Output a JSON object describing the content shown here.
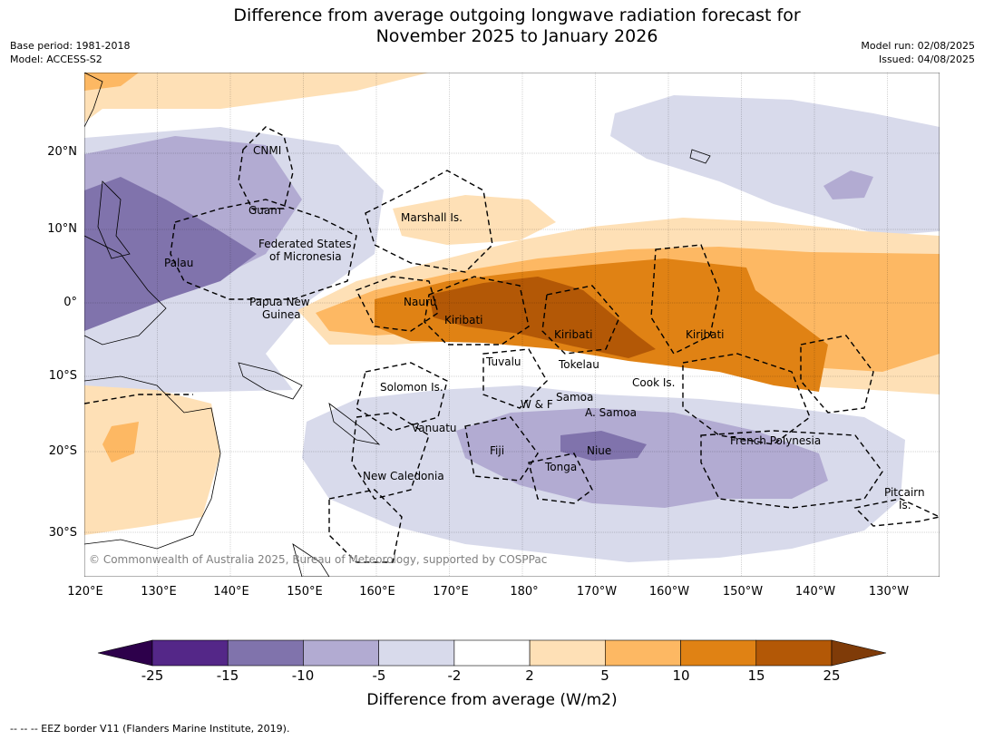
{
  "title_line1": "Difference from average outgoing longwave radiation forecast for",
  "title_line2": "November 2025 to January 2026",
  "base_period": "Base period: 1981-2018",
  "model": "Model: ACCESS-S2",
  "model_run": "Model run: 02/08/2025",
  "issued": "Issued: 04/08/2025",
  "copyright": "© Commonwealth of Australia 2025, Bureau of Meteorology, supported by COSPPac",
  "lat_labels": [
    "20°N",
    "10°N",
    "0°",
    "10°S",
    "20°S",
    "30°S"
  ],
  "lon_labels": [
    "120°E",
    "130°E",
    "140°E",
    "150°E",
    "160°E",
    "170°E",
    "180°",
    "170°W",
    "160°W",
    "150°W",
    "140°W",
    "130°W"
  ],
  "place_labels": {
    "cnmi": "CNMI",
    "guam": "Guam",
    "marshall": "Marshall Is.",
    "fsm1": "Federated States",
    "fsm2": "of Micronesia",
    "palau": "Palau",
    "png1": "Papua New",
    "png2": "Guinea",
    "nauru": "Nauru",
    "kiribati_w": "Kiribati",
    "kiribati_c": "Kiribati",
    "kiribati_e": "Kiribati",
    "tuvalu": "Tuvalu",
    "tokelau": "Tokelau",
    "cook": "Cook Is.",
    "solomon": "Solomon Is.",
    "wf": "W & F",
    "samoa": "Samoa",
    "asamoa": "A. Samoa",
    "vanuatu": "Vanuatu",
    "fiji": "Fiji",
    "niue": "Niue",
    "tonga": "Tonga",
    "frpoly": "French Polynesia",
    "newcal": "New Caledonia",
    "pitcairn1": "Pitcairn",
    "pitcairn2": "Is."
  },
  "colorbar": {
    "ticks": [
      "-25",
      "-15",
      "-10",
      "-5",
      "-2",
      "2",
      "5",
      "10",
      "15",
      "25"
    ],
    "colors": [
      "#2d004b",
      "#542788",
      "#8073ac",
      "#b2abd2",
      "#d8daeb",
      "#ffffff",
      "#fee0b6",
      "#fdb863",
      "#e08214",
      "#b35806",
      "#7f3b08"
    ],
    "label": "Difference from average (W/m2)"
  },
  "footnote": "-- -- -- EEZ border V11 (Flanders Marine Institute, 2019)."
}
